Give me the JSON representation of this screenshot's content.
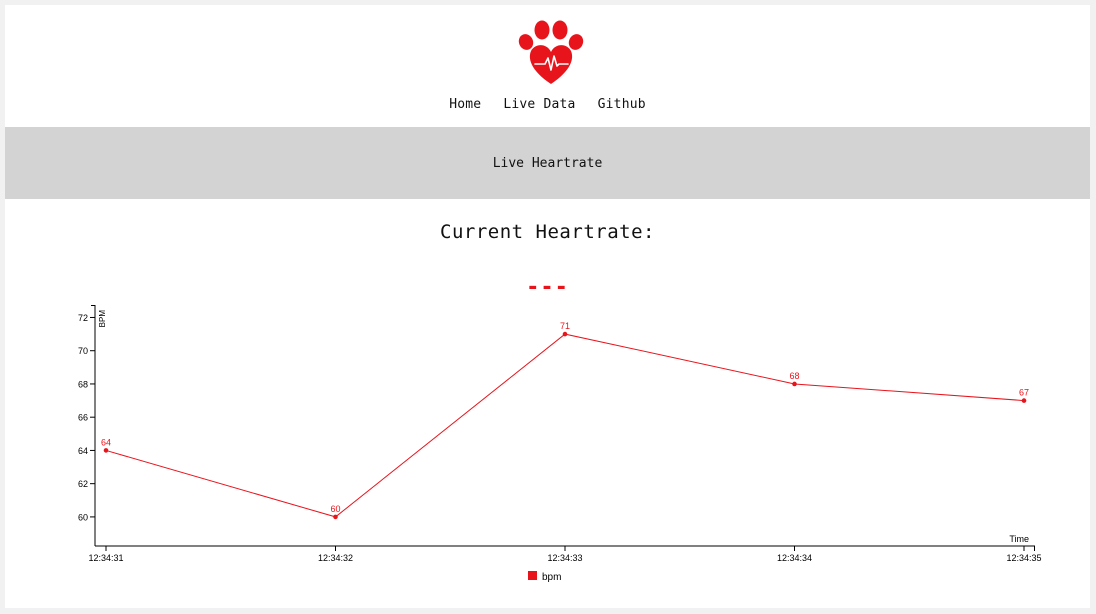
{
  "nav": {
    "items": [
      "Home",
      "Live Data",
      "Github"
    ]
  },
  "banner": {
    "title": "Live Heartrate"
  },
  "current": {
    "title": "Current Heartrate:",
    "value": "---"
  },
  "colors": {
    "accent": "#e8141c",
    "banner": "#d3d3d3"
  },
  "logo": {
    "icon": "paw-heart-pulse-icon"
  },
  "chart_data": {
    "type": "line",
    "x": [
      "12:34:31",
      "12:34:32",
      "12:34:33",
      "12:34:34",
      "12:34:35"
    ],
    "series": [
      {
        "name": "bpm",
        "values": [
          64,
          60,
          71,
          68,
          67
        ]
      }
    ],
    "ylabel": "BPM",
    "xlabel": "Time",
    "yticks": [
      60,
      62,
      64,
      66,
      68,
      70,
      72
    ],
    "ylim": [
      58.25,
      72.75
    ],
    "legend": "bottom-center",
    "grid": false
  }
}
